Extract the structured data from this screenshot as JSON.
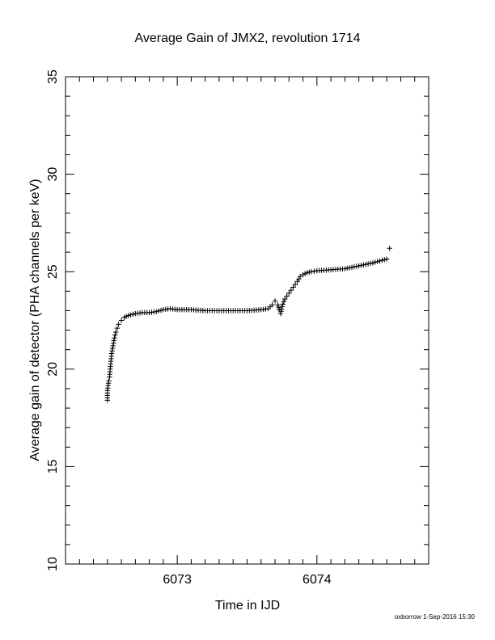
{
  "chart_data": {
    "type": "scatter",
    "title": "Average Gain of JMX2, revolution 1714",
    "xlabel": "Time in IJD",
    "ylabel": "Average gain of detector (PHA channels per keV)",
    "xlim": [
      6072.2,
      6074.8
    ],
    "ylim": [
      10,
      35
    ],
    "xticks": [
      6073,
      6074
    ],
    "yticks": [
      10,
      15,
      20,
      25,
      30,
      35
    ],
    "x_minor_step": 0.1,
    "y_minor_step": 1,
    "marker": "+",
    "color": "#000000",
    "grid": false,
    "series": [
      {
        "points": [
          [
            6072.5,
            18.4
          ],
          [
            6072.5,
            18.9
          ],
          [
            6072.51,
            19.4
          ],
          [
            6072.515,
            19.6
          ],
          [
            6072.52,
            20.0
          ],
          [
            6072.525,
            20.4
          ],
          [
            6072.53,
            20.8
          ],
          [
            6072.54,
            21.2
          ],
          [
            6072.55,
            21.6
          ],
          [
            6072.56,
            21.9
          ],
          [
            6072.57,
            22.1
          ],
          [
            6072.58,
            22.3
          ],
          [
            6072.6,
            22.5
          ],
          [
            6072.62,
            22.65
          ],
          [
            6072.65,
            22.75
          ],
          [
            6072.7,
            22.85
          ],
          [
            6072.75,
            22.9
          ],
          [
            6072.8,
            22.9
          ],
          [
            6072.85,
            22.95
          ],
          [
            6072.9,
            23.05
          ],
          [
            6072.95,
            23.1
          ],
          [
            6073.0,
            23.05
          ],
          [
            6073.1,
            23.05
          ],
          [
            6073.2,
            23.0
          ],
          [
            6073.3,
            23.0
          ],
          [
            6073.4,
            23.0
          ],
          [
            6073.5,
            23.0
          ],
          [
            6073.6,
            23.05
          ],
          [
            6073.65,
            23.1
          ],
          [
            6073.68,
            23.3
          ],
          [
            6073.7,
            23.5
          ],
          [
            6073.72,
            23.3
          ],
          [
            6073.73,
            23.05
          ],
          [
            6073.74,
            22.85
          ],
          [
            6073.75,
            23.2
          ],
          [
            6073.77,
            23.6
          ],
          [
            6073.8,
            23.9
          ],
          [
            6073.83,
            24.2
          ],
          [
            6073.86,
            24.5
          ],
          [
            6073.88,
            24.75
          ],
          [
            6073.9,
            24.85
          ],
          [
            6073.93,
            24.95
          ],
          [
            6073.96,
            25.0
          ],
          [
            6074.0,
            25.05
          ],
          [
            6074.1,
            25.1
          ],
          [
            6074.2,
            25.15
          ],
          [
            6074.3,
            25.3
          ],
          [
            6074.4,
            25.45
          ],
          [
            6074.45,
            25.55
          ],
          [
            6074.5,
            25.65
          ],
          [
            6074.52,
            26.2
          ]
        ]
      }
    ]
  },
  "footer": "oxborrow  1-Sep-2016 15:30"
}
